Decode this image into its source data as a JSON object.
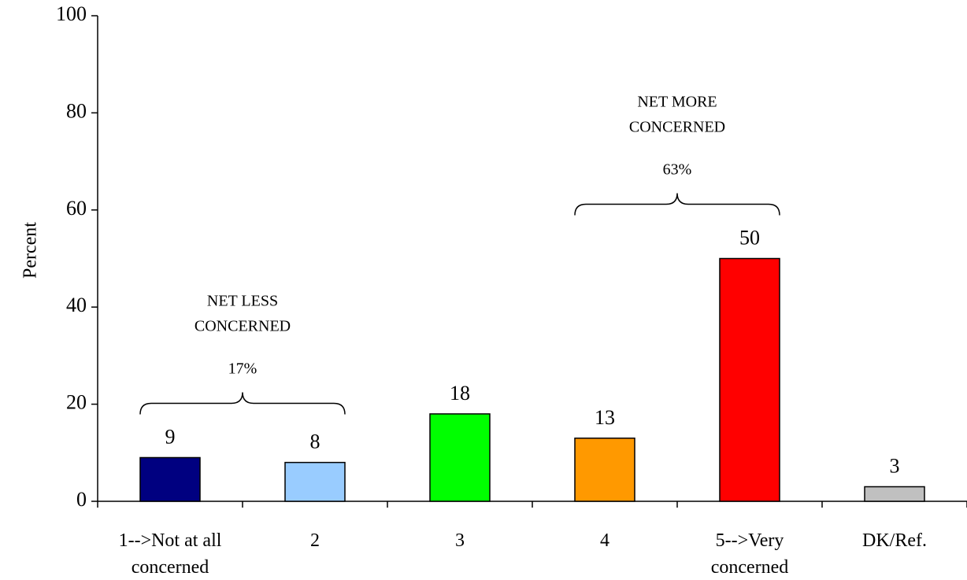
{
  "chart_data": {
    "type": "bar",
    "title": "",
    "xlabel": "",
    "ylabel": "Percent",
    "ylim": [
      0,
      100
    ],
    "yticks": [
      0,
      20,
      40,
      60,
      80,
      100
    ],
    "grid": false,
    "legend": "none",
    "categories": [
      [
        "1-->Not at all",
        "concerned"
      ],
      [
        "2"
      ],
      [
        "3"
      ],
      [
        "4"
      ],
      [
        "5-->Very",
        "concerned"
      ],
      [
        "DK/Ref."
      ]
    ],
    "values": [
      9,
      8,
      18,
      13,
      50,
      3
    ],
    "colors": [
      "#000080",
      "#99ccff",
      "#00ff00",
      "#ff9900",
      "#ff0000",
      "#c0c0c0"
    ],
    "annotations": [
      {
        "lines": [
          "NET LESS",
          "CONCERNED"
        ],
        "value": "17%",
        "from": 0,
        "to": 1
      },
      {
        "lines": [
          "NET MORE",
          "CONCERNED"
        ],
        "value": "63%",
        "from": 3,
        "to": 4
      }
    ]
  }
}
